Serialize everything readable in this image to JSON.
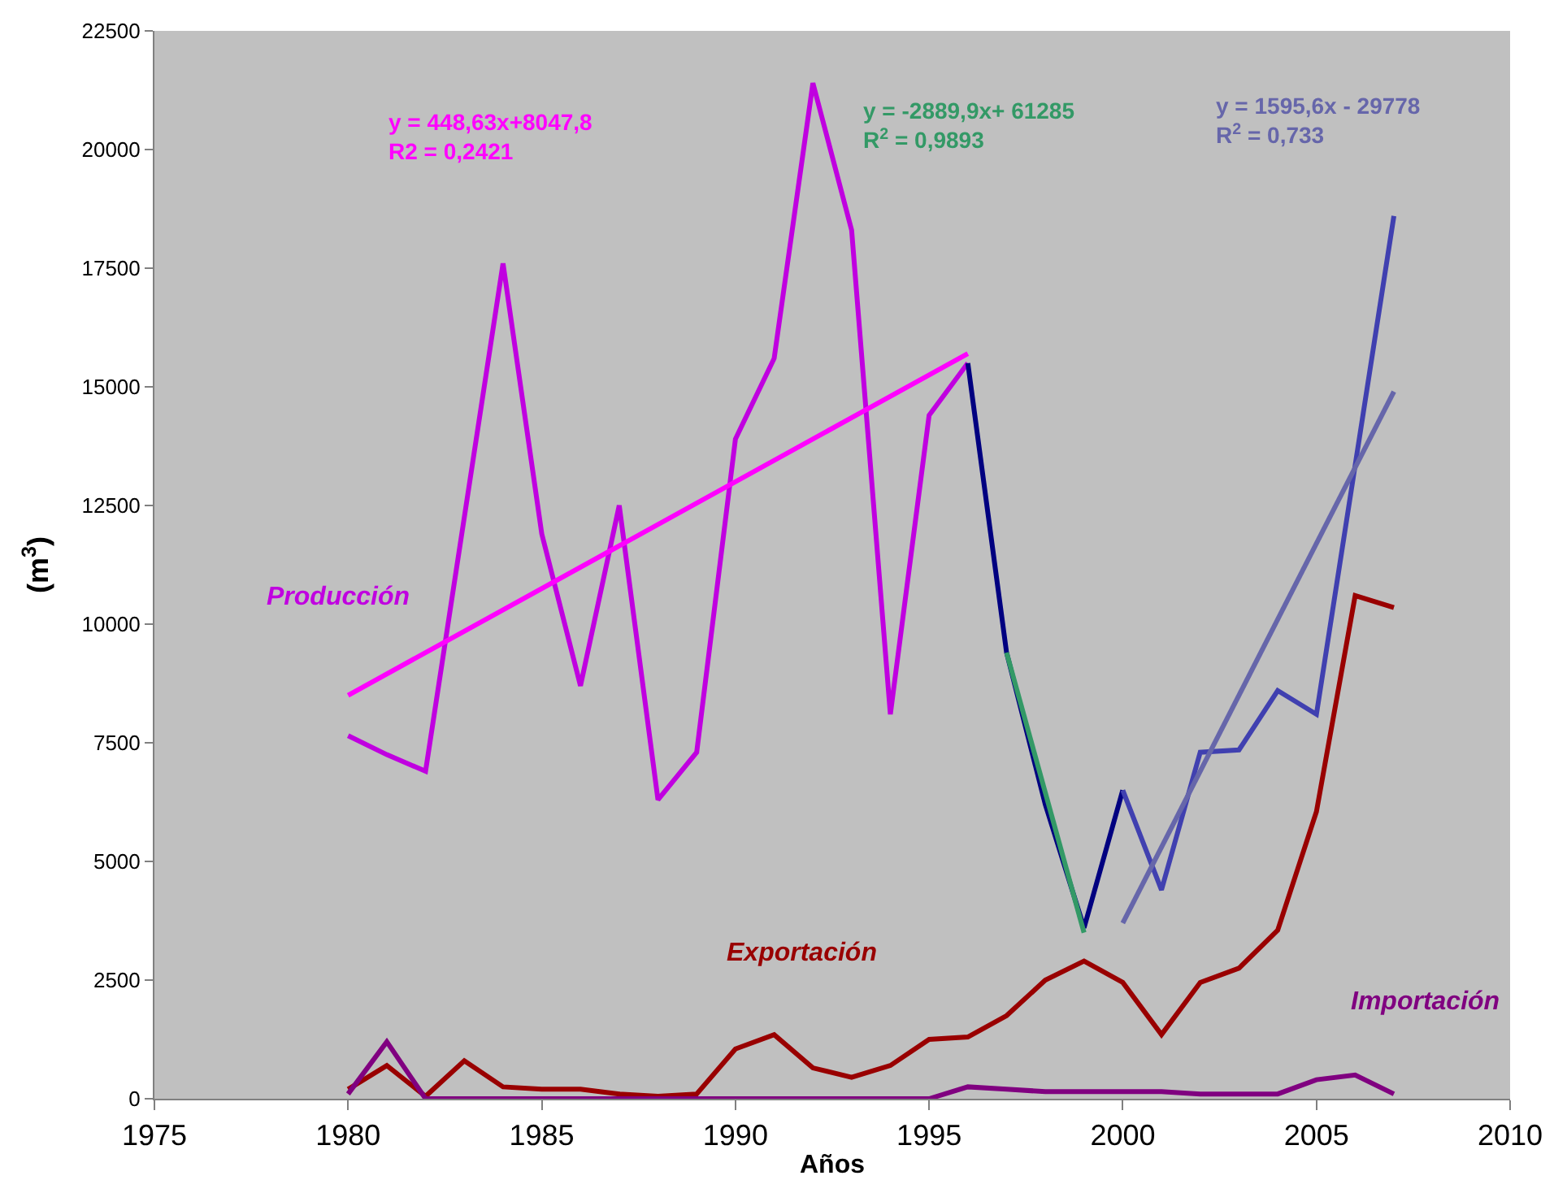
{
  "chart_data": {
    "type": "line",
    "xlabel": "Años",
    "ylabel": "(m$^{3}$)",
    "xlim": [
      1975,
      2010
    ],
    "xticks": [
      1975,
      1980,
      1985,
      1990,
      1995,
      2000,
      2005,
      2010
    ],
    "ylim": [
      0,
      22500
    ],
    "yticks": [
      0,
      2500,
      5000,
      7500,
      10000,
      12500,
      15000,
      17500,
      20000,
      22500
    ],
    "grid": false,
    "legend": false,
    "marker": "none",
    "line_style": "solid",
    "series": [
      {
        "name": "Producción",
        "color": "#c000e0",
        "x": [
          1980,
          1981,
          1982,
          1983,
          1984,
          1985,
          1986,
          1987,
          1988,
          1989,
          1990,
          1991,
          1992,
          1993,
          1994,
          1995,
          1996
        ],
        "values": [
          7650,
          7250,
          6900,
          12250,
          17600,
          11900,
          8700,
          12500,
          6300,
          7300,
          13900,
          15600,
          21400,
          18300,
          8100,
          14400,
          15500
        ]
      },
      {
        "color": "#000080",
        "x": [
          1996,
          1997,
          1998,
          1999,
          2000
        ],
        "values": [
          15500,
          9400,
          6200,
          3600,
          6500
        ]
      },
      {
        "color": "#4040b0",
        "x": [
          2000,
          2001,
          2002,
          2003,
          2004,
          2005,
          2006,
          2007
        ],
        "values": [
          6500,
          4400,
          7300,
          7350,
          8600,
          8100,
          13350,
          18600
        ]
      },
      {
        "color": "#ff00ff",
        "x": [
          1980,
          1996
        ],
        "values": [
          8500,
          15700
        ]
      },
      {
        "color": "#339966",
        "x": [
          1997,
          1999
        ],
        "values": [
          9400,
          3500
        ]
      },
      {
        "color": "#6666aa",
        "x": [
          2000,
          2007
        ],
        "values": [
          3700,
          14900
        ]
      },
      {
        "name": "Exportación",
        "color": "#990000",
        "x": [
          1980,
          1981,
          1982,
          1983,
          1984,
          1985,
          1986,
          1987,
          1988,
          1989,
          1990,
          1991,
          1992,
          1993,
          1994,
          1995,
          1996,
          1997,
          1998,
          1999,
          2000,
          2001,
          2002,
          2003,
          2004,
          2005,
          2006,
          2007
        ],
        "values": [
          200,
          700,
          50,
          800,
          250,
          200,
          200,
          100,
          50,
          100,
          1050,
          1350,
          650,
          450,
          700,
          1250,
          1300,
          1750,
          2500,
          2900,
          2450,
          1350,
          2450,
          2750,
          3550,
          6050,
          10600,
          10350
        ]
      },
      {
        "name": "Importación",
        "color": "#800080",
        "x": [
          1980,
          1981,
          1982,
          1983,
          1984,
          1985,
          1986,
          1987,
          1988,
          1989,
          1990,
          1991,
          1992,
          1993,
          1994,
          1995,
          1996,
          1997,
          1998,
          1999,
          2000,
          2001,
          2002,
          2003,
          2004,
          2005,
          2006,
          2007
        ],
        "values": [
          100,
          1200,
          0,
          0,
          0,
          0,
          0,
          0,
          0,
          0,
          0,
          0,
          0,
          0,
          0,
          0,
          250,
          200,
          150,
          150,
          150,
          150,
          100,
          100,
          100,
          400,
          500,
          100
        ]
      }
    ],
    "annotations": [
      "y = 448,63x+8047,8\nR2 = 0,2421",
      "y = -2889,9x+ 61285\nR$^{2}$ = 0,9893",
      "y = 1595,6x - 29778\nR$^{2}$ = 0,733"
    ]
  }
}
